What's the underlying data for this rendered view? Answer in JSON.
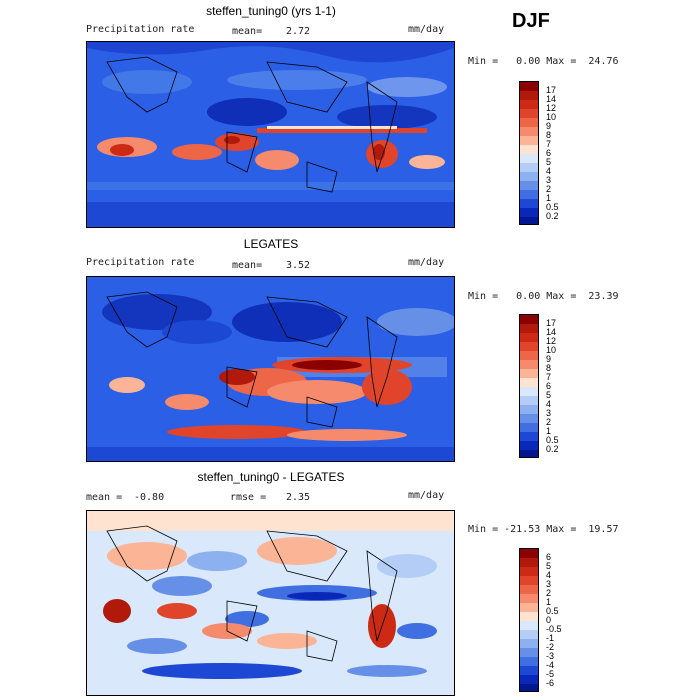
{
  "season": "DJF",
  "panels": [
    {
      "title": "steffen_tuning0 (yrs 1-1)",
      "left_label": "Precipitation rate",
      "stat_label": "mean=",
      "stat_value": "2.72",
      "unit": "mm/day",
      "min_max": "Min =   0.00 Max =  24.76",
      "colorbar": {
        "labels": [
          "17",
          "14",
          "12",
          "10",
          "9",
          "8",
          "7",
          "6",
          "5",
          "4",
          "3",
          "2",
          "1",
          "0.5",
          "0.2"
        ],
        "colors": [
          "#8b0000",
          "#b11a0a",
          "#cc2a14",
          "#e0442a",
          "#ee6648",
          "#f68a6c",
          "#fbb596",
          "#fde3d0",
          "#d9e8fb",
          "#b3cdf6",
          "#8db0ef",
          "#6690e8",
          "#3f6fe0",
          "#1c48d4",
          "#0a28b8",
          "#02168f"
        ]
      }
    },
    {
      "title": "LEGATES",
      "left_label": "Precipitation rate",
      "stat_label": "mean=",
      "stat_value": "3.52",
      "unit": "mm/day",
      "min_max": "Min =   0.00 Max =  23.39",
      "colorbar": {
        "labels": [
          "17",
          "14",
          "12",
          "10",
          "9",
          "8",
          "7",
          "6",
          "5",
          "4",
          "3",
          "2",
          "1",
          "0.5",
          "0.2"
        ],
        "colors": [
          "#8b0000",
          "#b11a0a",
          "#cc2a14",
          "#e0442a",
          "#ee6648",
          "#f68a6c",
          "#fbb596",
          "#fde3d0",
          "#d9e8fb",
          "#b3cdf6",
          "#8db0ef",
          "#6690e8",
          "#3f6fe0",
          "#1c48d4",
          "#0a28b8",
          "#02168f"
        ]
      }
    },
    {
      "title": "steffen_tuning0 - LEGATES",
      "left_label": "mean =",
      "left_value": "-0.80",
      "stat_label": "rmse =",
      "stat_value": "2.35",
      "unit": "mm/day",
      "min_max": "Min = -21.53 Max =  19.57",
      "colorbar": {
        "labels": [
          "6",
          "5",
          "4",
          "3",
          "2",
          "1",
          "0.5",
          "0",
          "-0.5",
          "-1",
          "-2",
          "-3",
          "-4",
          "-5",
          "-6"
        ],
        "colors": [
          "#8b0000",
          "#b11a0a",
          "#cc2a14",
          "#e0442a",
          "#ee6648",
          "#f68a6c",
          "#fbb596",
          "#fde3d0",
          "#d9e8fb",
          "#b3cdf6",
          "#8db0ef",
          "#6690e8",
          "#3f6fe0",
          "#1c48d4",
          "#0a28b8",
          "#02168f"
        ]
      }
    }
  ]
}
